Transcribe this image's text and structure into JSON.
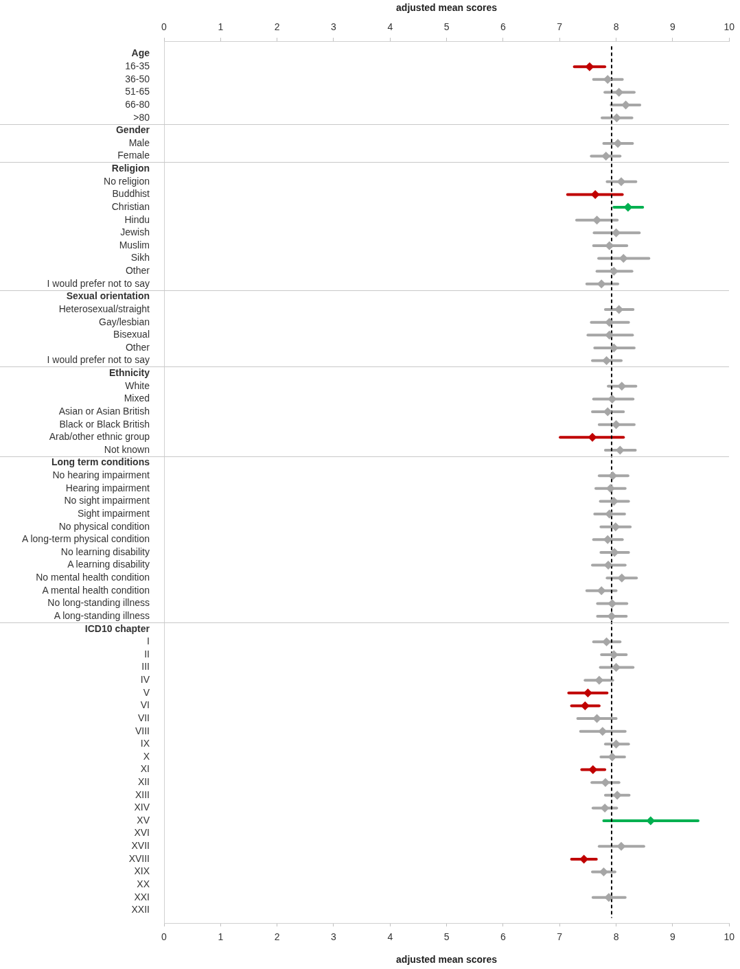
{
  "chart_data": {
    "type": "scatter",
    "orientation": "horizontal",
    "xlabel": "adjusted mean scores",
    "x2label": "adjusted mean scores",
    "categories": [
      "Age",
      "16-35",
      "36-50",
      "51-65",
      "66-80",
      ">80",
      "Gender",
      "Male",
      "Female",
      "Religion",
      "No religion",
      "Buddhist",
      "Christian",
      "Hindu",
      "Jewish",
      "Muslim",
      "Sikh",
      "Other",
      "I would prefer not to say",
      "Sexual orientation",
      "Heterosexual/straight",
      "Gay/lesbian",
      "Bisexual",
      "Other",
      "I would prefer not to say",
      "Ethnicity",
      "White",
      "Mixed",
      "Asian or Asian British",
      "Black or Black British",
      "Arab/other ethnic group",
      "Not known",
      "Long term conditions",
      "No hearing impairment",
      "Hearing impairment",
      "No sight impairment",
      "Sight impairment",
      "No physical condition",
      "A long-term physical condition",
      "No learning disability",
      "A learning disability",
      "No mental health condition",
      "A mental health condition",
      "No long-standing illness",
      "A long-standing illness",
      "ICD10 chapter",
      "I",
      "II",
      "III",
      "IV",
      "V",
      "VI",
      "VII",
      "VIII",
      "IX",
      "X",
      "XI",
      "XII",
      "XIII",
      "XIV",
      "XV",
      "XVI",
      "XVII",
      "XVIII",
      "XIX",
      "XX",
      "XXI",
      "XXII"
    ],
    "values": [
      null,
      7.53,
      7.85,
      8.05,
      8.17,
      8.01,
      null,
      8.03,
      7.82,
      null,
      8.09,
      7.63,
      8.21,
      7.66,
      8.0,
      7.88,
      8.13,
      7.96,
      7.74,
      null,
      8.05,
      7.88,
      7.88,
      7.96,
      7.83,
      null,
      8.1,
      7.93,
      7.85,
      8.0,
      7.58,
      8.07,
      null,
      7.94,
      7.9,
      7.96,
      7.88,
      7.99,
      7.85,
      7.97,
      7.86,
      8.1,
      7.74,
      7.93,
      7.92,
      null,
      7.83,
      7.96,
      8.0,
      7.7,
      7.5,
      7.45,
      7.66,
      7.76,
      8.0,
      7.93,
      7.59,
      7.81,
      8.02,
      7.8,
      8.61,
      null,
      8.09,
      7.43,
      7.78,
      null,
      7.87,
      null
    ],
    "errors": [
      null,
      [
        7.26,
        7.8
      ],
      [
        7.6,
        8.11
      ],
      [
        7.8,
        8.32
      ],
      [
        7.91,
        8.42
      ],
      [
        7.75,
        8.28
      ],
      null,
      [
        7.78,
        8.29
      ],
      [
        7.56,
        8.07
      ],
      null,
      [
        7.84,
        8.35
      ],
      [
        7.14,
        8.11
      ],
      [
        7.96,
        8.47
      ],
      [
        7.3,
        8.02
      ],
      [
        7.61,
        8.41
      ],
      [
        7.6,
        8.19
      ],
      [
        7.69,
        8.58
      ],
      [
        7.66,
        8.28
      ],
      [
        7.48,
        8.03
      ],
      null,
      [
        7.81,
        8.3
      ],
      [
        7.56,
        8.22
      ],
      [
        7.5,
        8.29
      ],
      [
        7.62,
        8.32
      ],
      [
        7.58,
        8.09
      ],
      null,
      [
        7.86,
        8.35
      ],
      [
        7.6,
        8.3
      ],
      [
        7.58,
        8.13
      ],
      [
        7.7,
        8.32
      ],
      [
        7.01,
        8.13
      ],
      [
        7.81,
        8.34
      ],
      null,
      [
        7.7,
        8.21
      ],
      [
        7.64,
        8.16
      ],
      [
        7.72,
        8.22
      ],
      [
        7.62,
        8.15
      ],
      [
        7.73,
        8.25
      ],
      [
        7.6,
        8.11
      ],
      [
        7.73,
        8.22
      ],
      [
        7.58,
        8.16
      ],
      [
        7.84,
        8.36
      ],
      [
        7.48,
        8.0
      ],
      [
        7.67,
        8.19
      ],
      [
        7.67,
        8.18
      ],
      null,
      [
        7.6,
        8.07
      ],
      [
        7.74,
        8.18
      ],
      [
        7.72,
        8.3
      ],
      [
        7.45,
        7.94
      ],
      [
        7.16,
        7.84
      ],
      [
        7.21,
        7.7
      ],
      [
        7.32,
        8.0
      ],
      [
        7.37,
        8.16
      ],
      [
        7.81,
        8.22
      ],
      [
        7.73,
        8.15
      ],
      [
        7.39,
        7.8
      ],
      [
        7.57,
        8.05
      ],
      [
        7.81,
        8.23
      ],
      [
        7.59,
        8.01
      ],
      [
        7.78,
        9.45
      ],
      null,
      [
        7.7,
        8.49
      ],
      [
        7.21,
        7.65
      ],
      [
        7.58,
        7.98
      ],
      null,
      [
        7.59,
        8.16
      ],
      null
    ],
    "colors": [
      null,
      "#c00000",
      "#a6a6a6",
      "#a6a6a6",
      "#a6a6a6",
      "#a6a6a6",
      null,
      "#a6a6a6",
      "#a6a6a6",
      null,
      "#a6a6a6",
      "#c00000",
      "#00b050",
      "#a6a6a6",
      "#a6a6a6",
      "#a6a6a6",
      "#a6a6a6",
      "#a6a6a6",
      "#a6a6a6",
      null,
      "#a6a6a6",
      "#a6a6a6",
      "#a6a6a6",
      "#a6a6a6",
      "#a6a6a6",
      null,
      "#a6a6a6",
      "#a6a6a6",
      "#a6a6a6",
      "#a6a6a6",
      "#c00000",
      "#a6a6a6",
      null,
      "#a6a6a6",
      "#a6a6a6",
      "#a6a6a6",
      "#a6a6a6",
      "#a6a6a6",
      "#a6a6a6",
      "#a6a6a6",
      "#a6a6a6",
      "#a6a6a6",
      "#a6a6a6",
      "#a6a6a6",
      "#a6a6a6",
      null,
      "#a6a6a6",
      "#a6a6a6",
      "#a6a6a6",
      "#a6a6a6",
      "#c00000",
      "#c00000",
      "#a6a6a6",
      "#a6a6a6",
      "#a6a6a6",
      "#a6a6a6",
      "#c00000",
      "#a6a6a6",
      "#a6a6a6",
      "#a6a6a6",
      "#00b050",
      null,
      "#a6a6a6",
      "#c00000",
      "#a6a6a6",
      null,
      "#a6a6a6",
      null
    ],
    "xlim": [
      0,
      10
    ],
    "xticks": [
      0,
      1,
      2,
      3,
      4,
      5,
      6,
      7,
      8,
      9,
      10
    ],
    "x2lim": [
      0,
      10
    ],
    "x2ticks": [
      0,
      1,
      2,
      3,
      4,
      5,
      6,
      7,
      8,
      9,
      10
    ],
    "ref_lines": [
      {
        "axis": "x",
        "value": 7.92,
        "color": "#000000",
        "line_style": "dashed"
      }
    ],
    "marker": "diamond",
    "grid": false,
    "legend": false
  }
}
